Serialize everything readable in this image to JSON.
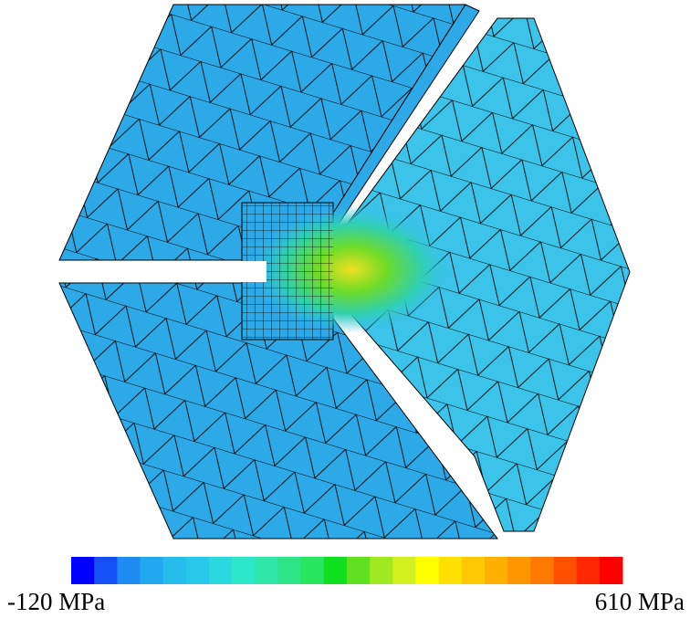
{
  "colorbar": {
    "min_label": "-120 MPa",
    "max_label": "610 MPa"
  }
}
